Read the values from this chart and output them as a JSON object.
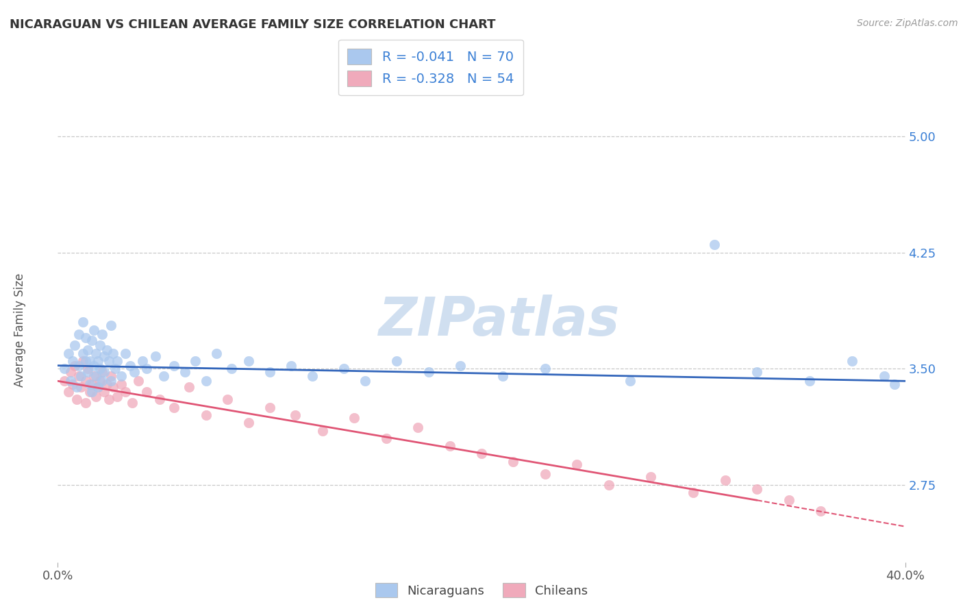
{
  "title": "NICARAGUAN VS CHILEAN AVERAGE FAMILY SIZE CORRELATION CHART",
  "source_text": "Source: ZipAtlas.com",
  "ylabel": "Average Family Size",
  "xlim": [
    0.0,
    0.4
  ],
  "ylim": [
    2.25,
    5.25
  ],
  "ytick_labels": [
    "2.75",
    "3.50",
    "4.25",
    "5.00"
  ],
  "ytick_values": [
    2.75,
    3.5,
    4.25,
    5.0
  ],
  "background_color": "#ffffff",
  "grid_color": "#c8c8c8",
  "watermark_text": "ZIPatlas",
  "watermark_color": "#d0dff0",
  "legend_R1": "R = -0.041",
  "legend_N1": "N = 70",
  "legend_R2": "R = -0.328",
  "legend_N2": "N = 54",
  "nic_color": "#aac8ee",
  "chile_color": "#f0aabb",
  "nic_line_color": "#3366bb",
  "chile_line_color": "#e05575",
  "right_axis_color": "#3a7fd5",
  "title_color": "#333333",
  "nic_scatter_x": [
    0.003,
    0.005,
    0.006,
    0.007,
    0.008,
    0.009,
    0.01,
    0.01,
    0.011,
    0.012,
    0.012,
    0.013,
    0.013,
    0.014,
    0.014,
    0.015,
    0.015,
    0.016,
    0.016,
    0.017,
    0.017,
    0.018,
    0.018,
    0.019,
    0.019,
    0.02,
    0.02,
    0.021,
    0.021,
    0.022,
    0.022,
    0.023,
    0.024,
    0.025,
    0.025,
    0.026,
    0.027,
    0.028,
    0.03,
    0.032,
    0.034,
    0.036,
    0.04,
    0.042,
    0.046,
    0.05,
    0.055,
    0.06,
    0.065,
    0.07,
    0.075,
    0.082,
    0.09,
    0.1,
    0.11,
    0.12,
    0.135,
    0.145,
    0.16,
    0.175,
    0.19,
    0.21,
    0.23,
    0.27,
    0.31,
    0.33,
    0.355,
    0.375,
    0.39,
    0.395
  ],
  "nic_scatter_y": [
    3.5,
    3.6,
    3.42,
    3.55,
    3.65,
    3.38,
    3.52,
    3.72,
    3.45,
    3.6,
    3.8,
    3.55,
    3.7,
    3.48,
    3.62,
    3.4,
    3.55,
    3.68,
    3.35,
    3.52,
    3.75,
    3.45,
    3.6,
    3.55,
    3.38,
    3.65,
    3.5,
    3.72,
    3.42,
    3.58,
    3.48,
    3.62,
    3.55,
    3.78,
    3.42,
    3.6,
    3.5,
    3.55,
    3.45,
    3.6,
    3.52,
    3.48,
    3.55,
    3.5,
    3.58,
    3.45,
    3.52,
    3.48,
    3.55,
    3.42,
    3.6,
    3.5,
    3.55,
    3.48,
    3.52,
    3.45,
    3.5,
    3.42,
    3.55,
    3.48,
    3.52,
    3.45,
    3.5,
    3.42,
    4.3,
    3.48,
    3.42,
    3.55,
    3.45,
    3.4
  ],
  "chile_scatter_x": [
    0.003,
    0.005,
    0.006,
    0.007,
    0.008,
    0.009,
    0.01,
    0.011,
    0.012,
    0.013,
    0.013,
    0.014,
    0.015,
    0.016,
    0.017,
    0.018,
    0.019,
    0.02,
    0.021,
    0.022,
    0.023,
    0.024,
    0.025,
    0.026,
    0.028,
    0.03,
    0.032,
    0.035,
    0.038,
    0.042,
    0.048,
    0.055,
    0.062,
    0.07,
    0.08,
    0.09,
    0.1,
    0.112,
    0.125,
    0.14,
    0.155,
    0.17,
    0.185,
    0.2,
    0.215,
    0.23,
    0.245,
    0.26,
    0.28,
    0.3,
    0.315,
    0.33,
    0.345,
    0.36
  ],
  "chile_scatter_y": [
    3.42,
    3.35,
    3.48,
    3.4,
    3.52,
    3.3,
    3.45,
    3.38,
    3.55,
    3.42,
    3.28,
    3.5,
    3.35,
    3.4,
    3.45,
    3.32,
    3.38,
    3.42,
    3.48,
    3.35,
    3.4,
    3.3,
    3.45,
    3.38,
    3.32,
    3.4,
    3.35,
    3.28,
    3.42,
    3.35,
    3.3,
    3.25,
    3.38,
    3.2,
    3.3,
    3.15,
    3.25,
    3.2,
    3.1,
    3.18,
    3.05,
    3.12,
    3.0,
    2.95,
    2.9,
    2.82,
    2.88,
    2.75,
    2.8,
    2.7,
    2.78,
    2.72,
    2.65,
    2.58
  ],
  "nic_line_x0": 0.0,
  "nic_line_x1": 0.4,
  "nic_line_y0": 3.52,
  "nic_line_y1": 3.42,
  "chile_line_solid_x0": 0.0,
  "chile_line_solid_x1": 0.33,
  "chile_line_y0": 3.42,
  "chile_line_y1": 2.65,
  "chile_line_dash_x0": 0.33,
  "chile_line_dash_x1": 0.4,
  "chile_line_dash_y0": 2.65,
  "chile_line_dash_y1": 2.48
}
